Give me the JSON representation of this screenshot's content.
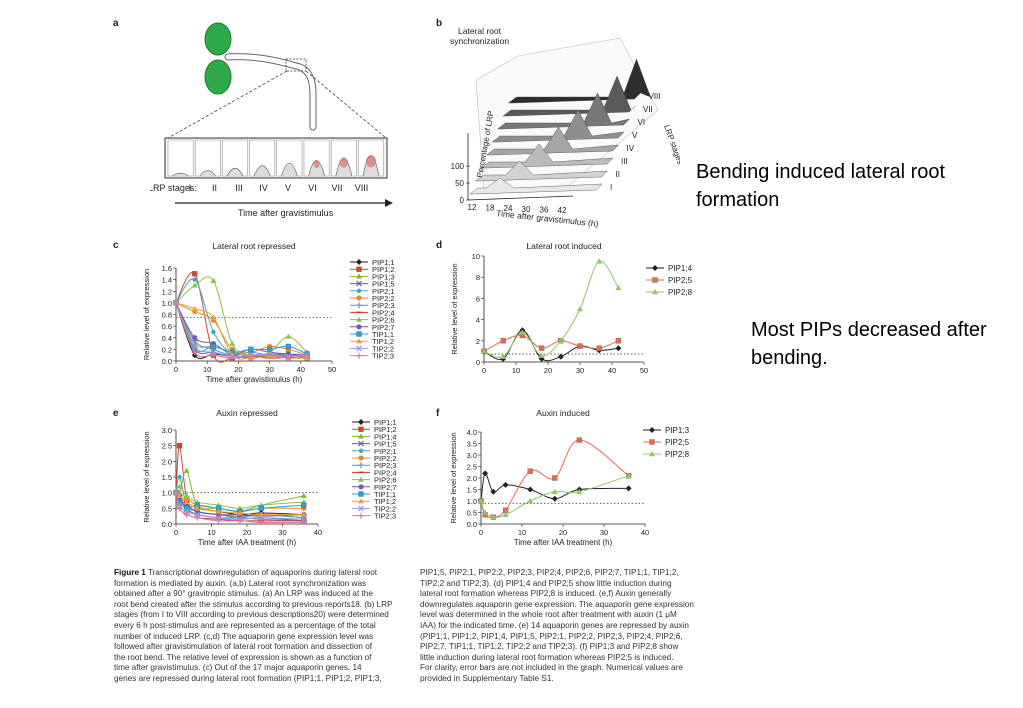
{
  "slide_notes": {
    "note1": "Bending induced lateral root formation",
    "note2": "Most PIPs decreased after bending."
  },
  "panels": {
    "a": {
      "letter": "a",
      "stage_prefix": "LRP stages:",
      "stages": [
        "I",
        "II",
        "III",
        "IV",
        "V",
        "VI",
        "VII",
        "VIII"
      ],
      "arrow_label": "Time after gravistimulus"
    },
    "b": {
      "letter": "b",
      "title_l1": "Lateral root",
      "title_l2": "synchronization",
      "ylabel": "Percentage of LRP",
      "y_ticks": [
        "0",
        "50",
        "100"
      ],
      "x_ticks": [
        "12",
        "18",
        "24",
        "30",
        "36",
        "42"
      ],
      "xlabel": "Time after gravistimulus (h)",
      "zlabel": "LRP stages",
      "stage_labels": [
        "I",
        "II",
        "III",
        "IV",
        "V",
        "VI",
        "VII",
        "VIII"
      ]
    },
    "c": {
      "letter": "c"
    },
    "d": {
      "letter": "d"
    },
    "e": {
      "letter": "e"
    },
    "f": {
      "letter": "f"
    }
  },
  "chart_data": [
    {
      "id": "c",
      "type": "line",
      "title": "Lateral root repressed",
      "xlabel": "Time after gravistimulus (h)",
      "ylabel": "Relative level of expression",
      "xlim": [
        0,
        50
      ],
      "ylim": [
        0,
        1.6
      ],
      "x_ticks": [
        0,
        10,
        20,
        30,
        40,
        50
      ],
      "y_ticks": [
        0,
        0.2,
        0.4,
        0.6,
        0.8,
        1.0,
        1.2,
        1.4,
        1.6
      ],
      "reference_line": 0.75,
      "x": [
        0,
        6,
        12,
        18,
        24,
        30,
        36,
        42
      ],
      "series": [
        {
          "name": "PIP1;1",
          "color": "#222222",
          "values": [
            1.0,
            0.1,
            0.12,
            0.08,
            0.1,
            0.12,
            0.1,
            0.08
          ]
        },
        {
          "name": "PIP1;2",
          "color": "#d9442a",
          "values": [
            1.0,
            1.5,
            0.1,
            0.05,
            0.08,
            0.1,
            0.06,
            0.05
          ]
        },
        {
          "name": "PIP1;3",
          "color": "#7fb83a",
          "values": [
            1.0,
            0.3,
            0.25,
            0.15,
            0.1,
            0.12,
            0.1,
            0.08
          ]
        },
        {
          "name": "PIP1;5",
          "color": "#6a5aa8",
          "values": [
            1.0,
            0.2,
            0.15,
            0.1,
            0.2,
            0.15,
            0.12,
            0.1
          ]
        },
        {
          "name": "PIP2;1",
          "color": "#3aa8c8",
          "values": [
            1.0,
            1.4,
            0.5,
            0.12,
            0.1,
            0.08,
            0.1,
            0.05
          ]
        },
        {
          "name": "PIP2;2",
          "color": "#e88a2a",
          "values": [
            1.0,
            0.85,
            0.7,
            0.2,
            0.15,
            0.25,
            0.2,
            0.1
          ]
        },
        {
          "name": "PIP2;3",
          "color": "#6e8ed0",
          "values": [
            1.0,
            0.35,
            0.2,
            0.1,
            0.15,
            0.1,
            0.08,
            0.1
          ]
        },
        {
          "name": "PIP2;4",
          "color": "#cc3333",
          "values": [
            1.0,
            0.15,
            0.1,
            0.05,
            0.08,
            0.05,
            0.06,
            0.05
          ]
        },
        {
          "name": "PIP2;6",
          "color": "#8bc34a",
          "values": [
            1.0,
            1.3,
            1.38,
            0.3,
            0.1,
            0.15,
            0.42,
            0.15
          ]
        },
        {
          "name": "PIP2;7",
          "color": "#7b55b5",
          "values": [
            1.0,
            0.4,
            0.3,
            0.1,
            0.05,
            0.1,
            0.12,
            0.05
          ]
        },
        {
          "name": "TIP1;1",
          "color": "#2a9fd8",
          "values": [
            1.0,
            0.2,
            0.25,
            0.15,
            0.2,
            0.2,
            0.25,
            0.12
          ]
        },
        {
          "name": "TIP1;2",
          "color": "#f0a030",
          "values": [
            1.0,
            0.9,
            0.75,
            0.1,
            0.05,
            0.08,
            0.05,
            0.05
          ]
        },
        {
          "name": "TIP2;2",
          "color": "#8aa0e0",
          "values": [
            1.0,
            0.25,
            0.15,
            0.08,
            0.1,
            0.12,
            0.08,
            0.1
          ]
        },
        {
          "name": "TIP2;3",
          "color": "#e07aa0",
          "values": [
            1.0,
            0.15,
            0.1,
            0.05,
            0.08,
            0.1,
            0.05,
            0.08
          ]
        }
      ]
    },
    {
      "id": "d",
      "type": "line",
      "title": "Lateral root induced",
      "xlabel": "",
      "ylabel": "Relative level of expression",
      "xlim": [
        0,
        50
      ],
      "ylim": [
        0,
        10
      ],
      "x_ticks": [
        0,
        10,
        20,
        30,
        40,
        50
      ],
      "y_ticks": [
        0,
        2,
        4,
        6,
        8,
        10
      ],
      "reference_line": 0.75,
      "x": [
        0,
        6,
        12,
        18,
        24,
        30,
        36,
        42
      ],
      "series": [
        {
          "name": "PIP1;4",
          "color": "#222222",
          "values": [
            1.0,
            0.3,
            3.0,
            0.3,
            0.5,
            1.5,
            1.1,
            1.3
          ]
        },
        {
          "name": "PIP2;5",
          "color": "#e86a50",
          "values": [
            1.0,
            2.0,
            2.5,
            1.3,
            2.0,
            1.5,
            1.3,
            2.0
          ]
        },
        {
          "name": "PIP2;8",
          "color": "#8dc860",
          "values": [
            1.0,
            0.5,
            2.8,
            0.6,
            2.0,
            5.0,
            9.5,
            7.0
          ]
        }
      ]
    },
    {
      "id": "e",
      "type": "line",
      "title": "Auxin repressed",
      "xlabel": "Time after IAA treatment (h)",
      "ylabel": "Relative level of expression",
      "xlim": [
        0,
        40
      ],
      "ylim": [
        0,
        3.0
      ],
      "x_ticks": [
        0,
        10,
        20,
        30,
        40
      ],
      "y_ticks": [
        0,
        0.5,
        1.0,
        1.5,
        2.0,
        2.5,
        3.0
      ],
      "reference_line": 1.0,
      "x": [
        0,
        1,
        3,
        6,
        12,
        18,
        24,
        36
      ],
      "series": [
        {
          "name": "PIP1;1",
          "color": "#222222",
          "values": [
            1.0,
            0.9,
            0.7,
            0.5,
            0.4,
            0.3,
            0.35,
            0.3
          ]
        },
        {
          "name": "PIP1;2",
          "color": "#d9442a",
          "values": [
            1.0,
            2.5,
            0.8,
            0.4,
            0.3,
            0.25,
            0.3,
            0.2
          ]
        },
        {
          "name": "PIP1;4",
          "color": "#7fb83a",
          "values": [
            1.0,
            1.0,
            1.7,
            0.6,
            0.5,
            0.4,
            0.6,
            0.9
          ]
        },
        {
          "name": "PIP1;5",
          "color": "#6a5aa8",
          "values": [
            1.0,
            0.8,
            0.5,
            0.3,
            0.2,
            0.15,
            0.2,
            0.1
          ]
        },
        {
          "name": "PIP2;1",
          "color": "#3aa8c8",
          "values": [
            1.0,
            1.5,
            0.6,
            0.4,
            0.3,
            0.2,
            0.3,
            0.2
          ]
        },
        {
          "name": "PIP2;2",
          "color": "#e88a2a",
          "values": [
            1.0,
            0.7,
            0.8,
            0.6,
            0.5,
            0.4,
            0.5,
            0.5
          ]
        },
        {
          "name": "PIP2;3",
          "color": "#6e8ed0",
          "values": [
            1.0,
            0.6,
            0.4,
            0.3,
            0.2,
            0.2,
            0.15,
            0.1
          ]
        },
        {
          "name": "PIP2;4",
          "color": "#cc3333",
          "values": [
            1.0,
            0.5,
            0.3,
            0.2,
            0.15,
            0.1,
            0.1,
            0.1
          ]
        },
        {
          "name": "PIP2;6",
          "color": "#8bc34a",
          "values": [
            1.0,
            1.2,
            0.9,
            0.7,
            0.6,
            0.5,
            0.6,
            0.7
          ]
        },
        {
          "name": "PIP2;7",
          "color": "#7b55b5",
          "values": [
            1.0,
            0.8,
            0.6,
            0.4,
            0.3,
            0.3,
            0.25,
            0.3
          ]
        },
        {
          "name": "TIP1;1",
          "color": "#2a9fd8",
          "values": [
            1.0,
            0.7,
            0.5,
            0.6,
            0.5,
            0.4,
            0.5,
            0.6
          ]
        },
        {
          "name": "TIP1;2",
          "color": "#f0a030",
          "values": [
            1.0,
            0.9,
            0.7,
            0.5,
            0.4,
            0.35,
            0.3,
            0.3
          ]
        },
        {
          "name": "TIP2;2",
          "color": "#8aa0e0",
          "values": [
            1.0,
            0.6,
            0.4,
            0.3,
            0.2,
            0.15,
            0.2,
            0.15
          ]
        },
        {
          "name": "TIP2;3",
          "color": "#e07aa0",
          "values": [
            1.0,
            0.5,
            0.3,
            0.2,
            0.1,
            0.1,
            0.05,
            0.05
          ]
        }
      ]
    },
    {
      "id": "f",
      "type": "line",
      "title": "Auxin induced",
      "xlabel": "Time after IAA treatment (h)",
      "ylabel": "Relative level of expression",
      "xlim": [
        0,
        40
      ],
      "ylim": [
        0,
        4.0
      ],
      "x_ticks": [
        0,
        10,
        20,
        30,
        40
      ],
      "y_ticks": [
        0,
        0.5,
        1.0,
        1.5,
        2.0,
        2.5,
        3.0,
        3.5,
        4.0
      ],
      "reference_line": 0.9,
      "x": [
        0,
        1,
        3,
        6,
        12,
        18,
        24,
        36
      ],
      "series": [
        {
          "name": "PIP1;3",
          "color": "#222222",
          "values": [
            1.0,
            2.2,
            1.4,
            1.7,
            1.5,
            1.1,
            1.5,
            1.55
          ]
        },
        {
          "name": "PIP2;5",
          "color": "#e86a50",
          "values": [
            1.0,
            0.4,
            0.3,
            0.6,
            2.3,
            2.0,
            3.65,
            2.1
          ]
        },
        {
          "name": "PIP2;8",
          "color": "#8dc860",
          "values": [
            1.0,
            0.5,
            0.3,
            0.4,
            1.0,
            1.4,
            1.4,
            2.1
          ]
        }
      ]
    }
  ],
  "caption": {
    "col1": [
      {
        "b": "Figure 1",
        "t": " Transcriptional downregulation of aquaporins during lateral root"
      },
      {
        "b": "",
        "t": "formation is mediated by auxin. (a,b) Lateral root synchronization was"
      },
      {
        "b": "",
        "t": "obtained after a 90° gravitropic stimulus. (a) An LRP was induced at the"
      },
      {
        "b": "",
        "t": "root bend created after the stimulus according to previous reports18. (b) LRP"
      },
      {
        "b": "",
        "t": "stages (from I to VIII according to previous descriptions20) were determined"
      },
      {
        "b": "",
        "t": "every 6 h post-stimulus and are represented as a percentage of the total"
      },
      {
        "b": "",
        "t": "number of induced LRP. (c,d) The aquaporin gene expression level was"
      },
      {
        "b": "",
        "t": "followed after gravistimulation of lateral root formation and dissection of"
      },
      {
        "b": "",
        "t": "the root bend. The relative level of expression is shown as a function of"
      },
      {
        "b": "",
        "t": "time after gravistimulus. (c) Out of the 17 major aquaporin genes, 14"
      },
      {
        "b": "",
        "t": "genes are repressed during lateral root formation (PIP1;1, PIP1;2, PIP1;3,"
      }
    ],
    "col2": [
      "PIP1;5, PIP2;1, PIP2;2, PIP2;3, PIP2;4, PIP2;6, PIP2;7, TIP1;1, TIP1;2,",
      "TIP2;2 and TIP2;3). (d) PIP1;4 and PIP2;5 show little induction during",
      "lateral root formation whereas PIP2;8 is induced. (e,f) Auxin generally",
      "downregulates aquaporin gene expression. The aquaporin gene expression",
      "level was determined in the whole root after treatment with auxin (1 μM",
      "IAA) for the indicated time. (e) 14 aquaporin genes are repressed by auxin",
      "(PIP1;1, PIP1;2, PIP1;4, PIP1;5, PIP2;1, PIP2;2, PIP2;3, PIP2;4, PIP2;6,",
      "PIP2;7, TIP1;1, TIP1;2, TIP2;2 and TIP2;3). (f) PIP1;3 and PIP2;8 show",
      "little induction during lateral root formation whereas PIP2;5 is induced.",
      "For clarity, error bars are not included in the graph. Numerical values are",
      "provided in Supplementary Table S1."
    ]
  }
}
